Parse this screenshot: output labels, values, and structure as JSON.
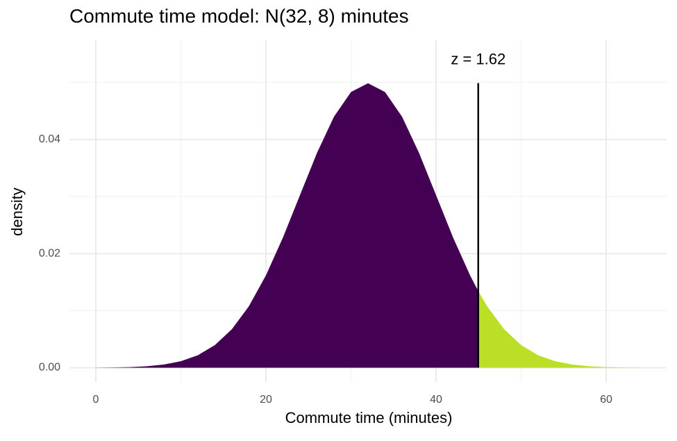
{
  "chart_data": {
    "type": "area",
    "title": "Commute time model: N(32, 8) minutes",
    "x_label": "Commute time (minutes)",
    "y_label": "density",
    "xlim": [
      -3.1,
      67.1
    ],
    "ylim": [
      -0.0025,
      0.0574
    ],
    "xticks": [
      0,
      20,
      40,
      60
    ],
    "yticks": [
      {
        "value": 0,
        "label": "0.00"
      },
      {
        "value": 0.02,
        "label": "0.02"
      },
      {
        "value": 0.04,
        "label": "0.04"
      }
    ],
    "minor_xticks": [
      10,
      30,
      50
    ],
    "minor_yticks": [
      0.01,
      0.03,
      0.05
    ],
    "grid": true,
    "series": [
      {
        "color": "#440154",
        "x": [
          0,
          2,
          4,
          6,
          8,
          10,
          12,
          14,
          16,
          18,
          20,
          22,
          24,
          26,
          28,
          30,
          32,
          34,
          36,
          38,
          40,
          42,
          44,
          44.96
        ],
        "values": [
          1.67e-05,
          4.41e-05,
          0.000109,
          0.000254,
          0.000554,
          0.001137,
          0.002191,
          0.003967,
          0.006749,
          0.010785,
          0.01619,
          0.022831,
          0.030246,
          0.037642,
          0.044009,
          0.048334,
          0.049868,
          0.048334,
          0.044009,
          0.037642,
          0.030246,
          0.022831,
          0.01619,
          0.013427
        ]
      },
      {
        "color": "#BBDF27",
        "x": [
          44.96,
          46,
          48,
          50,
          52,
          54,
          56,
          58,
          60,
          62,
          64
        ],
        "values": [
          0.013427,
          0.010785,
          0.006749,
          0.003967,
          0.002191,
          0.001137,
          0.000554,
          0.000254,
          0.000109,
          4.41e-05,
          1.67e-05
        ]
      }
    ],
    "vline": {
      "x": 44.96,
      "y_end": 0.0499,
      "color": "#000000"
    },
    "annotation": {
      "text": "z =  1.62",
      "x": 44.96,
      "y": 0.0539
    }
  }
}
